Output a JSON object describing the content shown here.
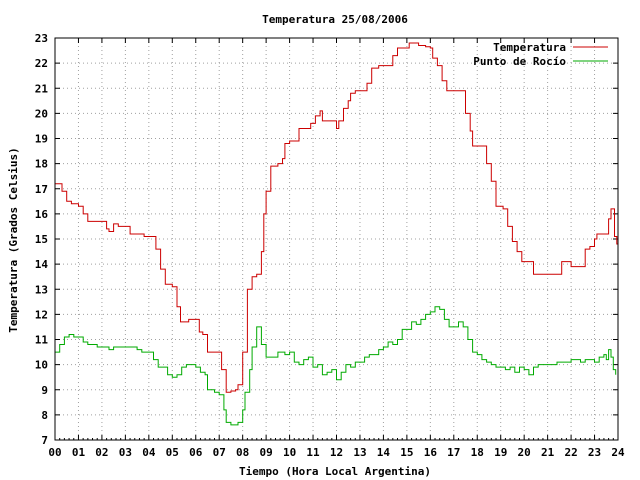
{
  "chart_data": {
    "type": "line",
    "title": "Temperatura 25/08/2006",
    "xlabel": "Tiempo (Hora Local Argentina)",
    "ylabel": "Temperatura (Grados Celsius)",
    "xlim": [
      0,
      24
    ],
    "ylim": [
      7,
      23
    ],
    "grid": true,
    "legend_position": "top-right",
    "x_ticks": [
      "00",
      "01",
      "02",
      "03",
      "04",
      "05",
      "06",
      "07",
      "08",
      "09",
      "10",
      "11",
      "12",
      "13",
      "14",
      "15",
      "16",
      "17",
      "18",
      "19",
      "20",
      "21",
      "22",
      "23",
      "24"
    ],
    "y_ticks": [
      "7",
      "8",
      "9",
      "10",
      "11",
      "12",
      "13",
      "14",
      "15",
      "16",
      "17",
      "18",
      "19",
      "20",
      "21",
      "22",
      "23"
    ],
    "series": [
      {
        "name": "Temperatura",
        "color": "#cc0000",
        "points": [
          [
            0.0,
            17.2
          ],
          [
            0.3,
            16.9
          ],
          [
            0.5,
            16.5
          ],
          [
            0.7,
            16.4
          ],
          [
            1.0,
            16.3
          ],
          [
            1.2,
            16.0
          ],
          [
            1.4,
            15.7
          ],
          [
            1.6,
            15.7
          ],
          [
            2.0,
            15.7
          ],
          [
            2.2,
            15.4
          ],
          [
            2.3,
            15.3
          ],
          [
            2.5,
            15.6
          ],
          [
            2.7,
            15.5
          ],
          [
            3.0,
            15.5
          ],
          [
            3.2,
            15.2
          ],
          [
            3.5,
            15.2
          ],
          [
            3.8,
            15.1
          ],
          [
            4.0,
            15.1
          ],
          [
            4.3,
            14.6
          ],
          [
            4.5,
            13.8
          ],
          [
            4.7,
            13.2
          ],
          [
            5.0,
            13.1
          ],
          [
            5.2,
            12.3
          ],
          [
            5.35,
            11.7
          ],
          [
            5.5,
            11.7
          ],
          [
            5.7,
            11.8
          ],
          [
            6.0,
            11.8
          ],
          [
            6.15,
            11.3
          ],
          [
            6.3,
            11.2
          ],
          [
            6.5,
            10.5
          ],
          [
            6.9,
            10.5
          ],
          [
            7.1,
            9.8
          ],
          [
            7.3,
            8.9
          ],
          [
            7.5,
            8.95
          ],
          [
            7.7,
            9.0
          ],
          [
            7.8,
            9.2
          ],
          [
            8.0,
            10.5
          ],
          [
            8.2,
            13.0
          ],
          [
            8.4,
            13.5
          ],
          [
            8.6,
            13.6
          ],
          [
            8.8,
            14.5
          ],
          [
            8.9,
            16.0
          ],
          [
            9.0,
            16.9
          ],
          [
            9.2,
            17.9
          ],
          [
            9.5,
            18.0
          ],
          [
            9.7,
            18.2
          ],
          [
            9.8,
            18.8
          ],
          [
            10.0,
            18.9
          ],
          [
            10.2,
            18.9
          ],
          [
            10.4,
            19.4
          ],
          [
            10.8,
            19.4
          ],
          [
            10.9,
            19.6
          ],
          [
            11.1,
            19.9
          ],
          [
            11.3,
            20.1
          ],
          [
            11.4,
            19.7
          ],
          [
            11.6,
            19.7
          ],
          [
            11.9,
            19.7
          ],
          [
            12.0,
            19.4
          ],
          [
            12.1,
            19.7
          ],
          [
            12.3,
            20.2
          ],
          [
            12.5,
            20.5
          ],
          [
            12.6,
            20.8
          ],
          [
            12.8,
            20.9
          ],
          [
            13.1,
            20.9
          ],
          [
            13.3,
            21.2
          ],
          [
            13.5,
            21.8
          ],
          [
            13.8,
            21.9
          ],
          [
            14.2,
            21.9
          ],
          [
            14.4,
            22.3
          ],
          [
            14.6,
            22.6
          ],
          [
            15.0,
            22.6
          ],
          [
            15.1,
            22.8
          ],
          [
            15.3,
            22.8
          ],
          [
            15.5,
            22.7
          ],
          [
            15.8,
            22.65
          ],
          [
            16.0,
            22.6
          ],
          [
            16.1,
            22.2
          ],
          [
            16.3,
            21.9
          ],
          [
            16.5,
            21.3
          ],
          [
            16.7,
            20.9
          ],
          [
            17.0,
            20.9
          ],
          [
            17.2,
            20.9
          ],
          [
            17.5,
            20.0
          ],
          [
            17.7,
            19.3
          ],
          [
            17.8,
            18.7
          ],
          [
            18.2,
            18.7
          ],
          [
            18.4,
            18.0
          ],
          [
            18.6,
            17.3
          ],
          [
            18.8,
            16.3
          ],
          [
            19.1,
            16.2
          ],
          [
            19.3,
            15.5
          ],
          [
            19.5,
            14.9
          ],
          [
            19.7,
            14.5
          ],
          [
            19.9,
            14.1
          ],
          [
            20.2,
            14.1
          ],
          [
            20.4,
            13.6
          ],
          [
            21.0,
            13.6
          ],
          [
            21.4,
            13.6
          ],
          [
            21.6,
            14.1
          ],
          [
            21.9,
            14.1
          ],
          [
            22.0,
            13.9
          ],
          [
            22.4,
            13.9
          ],
          [
            22.6,
            14.6
          ],
          [
            22.8,
            14.7
          ],
          [
            23.0,
            15.0
          ],
          [
            23.1,
            15.2
          ],
          [
            23.5,
            15.2
          ],
          [
            23.6,
            15.8
          ],
          [
            23.7,
            16.2
          ],
          [
            23.85,
            15.1
          ],
          [
            23.95,
            14.8
          ],
          [
            24.0,
            15.0
          ]
        ]
      },
      {
        "name": "Punto de Rocío",
        "color": "#00aa00",
        "points": [
          [
            0.0,
            10.5
          ],
          [
            0.2,
            10.8
          ],
          [
            0.4,
            11.1
          ],
          [
            0.6,
            11.2
          ],
          [
            0.8,
            11.1
          ],
          [
            1.0,
            11.1
          ],
          [
            1.2,
            10.9
          ],
          [
            1.4,
            10.8
          ],
          [
            1.8,
            10.7
          ],
          [
            2.0,
            10.7
          ],
          [
            2.3,
            10.6
          ],
          [
            2.5,
            10.7
          ],
          [
            3.0,
            10.7
          ],
          [
            3.2,
            10.7
          ],
          [
            3.5,
            10.6
          ],
          [
            3.7,
            10.5
          ],
          [
            4.0,
            10.5
          ],
          [
            4.2,
            10.2
          ],
          [
            4.4,
            9.9
          ],
          [
            4.6,
            9.9
          ],
          [
            4.8,
            9.6
          ],
          [
            5.0,
            9.5
          ],
          [
            5.2,
            9.6
          ],
          [
            5.4,
            9.9
          ],
          [
            5.6,
            10.0
          ],
          [
            5.8,
            10.0
          ],
          [
            6.0,
            9.9
          ],
          [
            6.2,
            9.7
          ],
          [
            6.4,
            9.6
          ],
          [
            6.5,
            9.0
          ],
          [
            6.8,
            8.9
          ],
          [
            7.0,
            8.8
          ],
          [
            7.2,
            8.2
          ],
          [
            7.3,
            7.7
          ],
          [
            7.5,
            7.6
          ],
          [
            7.8,
            7.7
          ],
          [
            8.0,
            8.2
          ],
          [
            8.1,
            8.9
          ],
          [
            8.3,
            9.8
          ],
          [
            8.4,
            10.7
          ],
          [
            8.6,
            11.5
          ],
          [
            8.8,
            10.8
          ],
          [
            9.0,
            10.3
          ],
          [
            9.2,
            10.3
          ],
          [
            9.5,
            10.5
          ],
          [
            9.8,
            10.4
          ],
          [
            10.0,
            10.5
          ],
          [
            10.2,
            10.1
          ],
          [
            10.4,
            10.0
          ],
          [
            10.6,
            10.2
          ],
          [
            10.8,
            10.3
          ],
          [
            11.0,
            9.9
          ],
          [
            11.2,
            10.0
          ],
          [
            11.4,
            9.6
          ],
          [
            11.6,
            9.7
          ],
          [
            11.8,
            9.8
          ],
          [
            12.0,
            9.4
          ],
          [
            12.2,
            9.7
          ],
          [
            12.4,
            10.0
          ],
          [
            12.6,
            9.9
          ],
          [
            12.8,
            10.1
          ],
          [
            13.0,
            10.1
          ],
          [
            13.2,
            10.3
          ],
          [
            13.4,
            10.4
          ],
          [
            13.6,
            10.4
          ],
          [
            13.8,
            10.6
          ],
          [
            14.0,
            10.7
          ],
          [
            14.2,
            10.9
          ],
          [
            14.4,
            10.8
          ],
          [
            14.6,
            11.0
          ],
          [
            14.8,
            11.4
          ],
          [
            15.0,
            11.4
          ],
          [
            15.2,
            11.7
          ],
          [
            15.4,
            11.6
          ],
          [
            15.6,
            11.8
          ],
          [
            15.8,
            12.0
          ],
          [
            16.0,
            12.1
          ],
          [
            16.2,
            12.3
          ],
          [
            16.4,
            12.2
          ],
          [
            16.6,
            11.8
          ],
          [
            16.8,
            11.5
          ],
          [
            17.0,
            11.5
          ],
          [
            17.2,
            11.7
          ],
          [
            17.4,
            11.5
          ],
          [
            17.6,
            11.0
          ],
          [
            17.8,
            10.5
          ],
          [
            18.0,
            10.4
          ],
          [
            18.2,
            10.2
          ],
          [
            18.4,
            10.1
          ],
          [
            18.6,
            10.0
          ],
          [
            18.8,
            9.9
          ],
          [
            19.0,
            9.9
          ],
          [
            19.2,
            9.8
          ],
          [
            19.4,
            9.9
          ],
          [
            19.6,
            9.7
          ],
          [
            19.8,
            9.9
          ],
          [
            20.0,
            9.8
          ],
          [
            20.2,
            9.6
          ],
          [
            20.4,
            9.9
          ],
          [
            20.6,
            10.0
          ],
          [
            21.0,
            10.0
          ],
          [
            21.4,
            10.1
          ],
          [
            21.6,
            10.1
          ],
          [
            22.0,
            10.2
          ],
          [
            22.2,
            10.2
          ],
          [
            22.4,
            10.1
          ],
          [
            22.6,
            10.2
          ],
          [
            22.8,
            10.2
          ],
          [
            23.0,
            10.1
          ],
          [
            23.2,
            10.3
          ],
          [
            23.4,
            10.4
          ],
          [
            23.5,
            10.2
          ],
          [
            23.6,
            10.6
          ],
          [
            23.7,
            10.3
          ],
          [
            23.8,
            9.8
          ],
          [
            23.9,
            9.6
          ]
        ]
      }
    ]
  }
}
